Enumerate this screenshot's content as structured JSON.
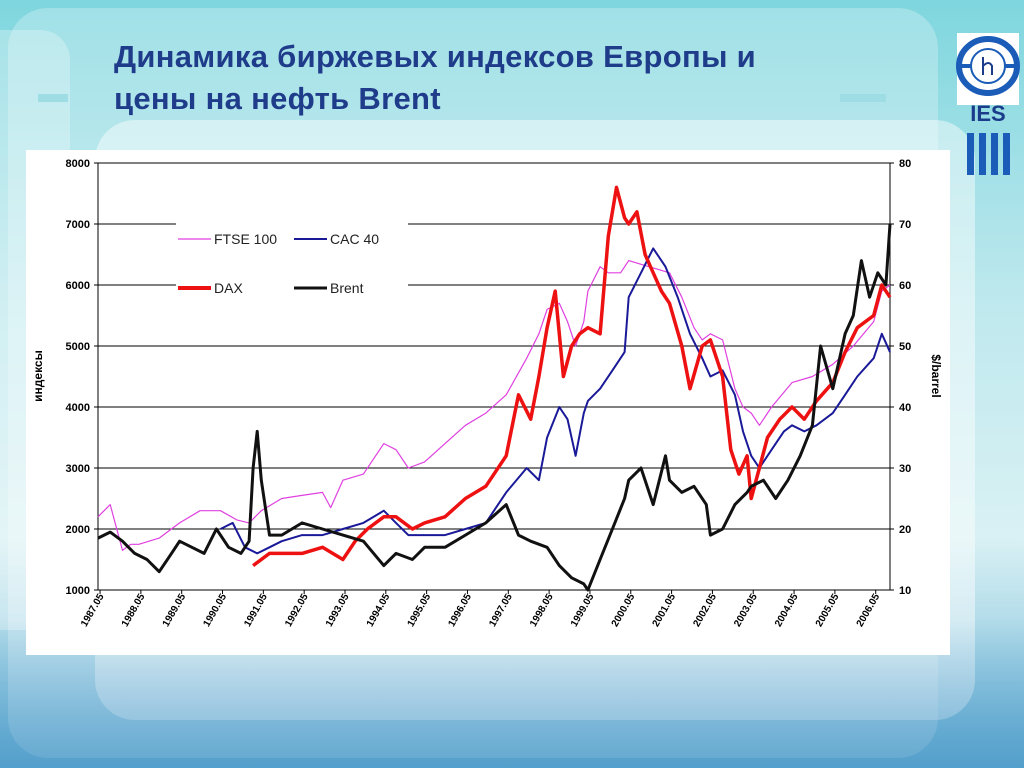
{
  "slide": {
    "title_line1": "Динамика биржевых индексов Европы и",
    "title_line2": "цены на нефть Brent",
    "logo_text": "IES"
  },
  "chart_data": {
    "type": "line",
    "xlabel": "",
    "ylabel_left": "индексы",
    "ylabel_right": "$/barrel",
    "ylim_left": [
      1000,
      8000
    ],
    "ylim_right": [
      10,
      80
    ],
    "yticks_left": [
      "1000",
      "2000",
      "3000",
      "4000",
      "5000",
      "6000",
      "7000",
      "8000"
    ],
    "yticks_right": [
      "10",
      "20",
      "30",
      "40",
      "50",
      "60",
      "70",
      "80"
    ],
    "xticks": [
      "1987.05",
      "1988.05",
      "1989.05",
      "1990.05",
      "1991.05",
      "1992.05",
      "1993.05",
      "1994.05",
      "1995.05",
      "1996.05",
      "1997.05",
      "1998.05",
      "1999.05",
      "2000.05",
      "2001.05",
      "2002.05",
      "2003.05",
      "2004.05",
      "2005.05",
      "2006.05"
    ],
    "grid": "horizontal",
    "legend_position": "top-left",
    "series": [
      {
        "name": "FTSE 100",
        "axis": "left",
        "color": "#e040e0",
        "x": [
          1987.0,
          1987.3,
          1987.6,
          1987.8,
          1988.0,
          1988.5,
          1989.0,
          1989.5,
          1990.0,
          1990.4,
          1990.7,
          1991.0,
          1991.5,
          1992.0,
          1992.5,
          1992.7,
          1993.0,
          1993.5,
          1994.0,
          1994.3,
          1994.6,
          1995.0,
          1995.5,
          1996.0,
          1996.5,
          1997.0,
          1997.5,
          1997.8,
          1998.0,
          1998.3,
          1998.5,
          1998.7,
          1998.9,
          1999.0,
          1999.3,
          1999.5,
          1999.8,
          2000.0,
          2000.5,
          2001.0,
          2001.3,
          2001.6,
          2001.8,
          2002.0,
          2002.3,
          2002.6,
          2002.8,
          2003.0,
          2003.2,
          2003.5,
          2004.0,
          2004.5,
          2005.0,
          2005.5,
          2006.0,
          2006.2,
          2006.4
        ],
        "y": [
          2200,
          2400,
          1650,
          1750,
          1750,
          1850,
          2100,
          2300,
          2300,
          2150,
          2100,
          2300,
          2500,
          2550,
          2600,
          2350,
          2800,
          2900,
          3400,
          3300,
          3000,
          3100,
          3400,
          3700,
          3900,
          4200,
          4800,
          5200,
          5600,
          5700,
          5400,
          5000,
          5400,
          5900,
          6300,
          6200,
          6200,
          6400,
          6300,
          6200,
          5800,
          5300,
          5100,
          5200,
          5100,
          4300,
          4000,
          3900,
          3700,
          4000,
          4400,
          4500,
          4700,
          5000,
          5400,
          5900,
          6000
        ]
      },
      {
        "name": "CAC 40",
        "axis": "left",
        "color": "#1a1a99",
        "x": [
          1990.0,
          1990.3,
          1990.6,
          1990.9,
          1991.2,
          1991.5,
          1992.0,
          1992.5,
          1993.0,
          1993.5,
          1994.0,
          1994.3,
          1994.6,
          1995.0,
          1995.5,
          1996.0,
          1996.5,
          1997.0,
          1997.5,
          1997.8,
          1998.0,
          1998.3,
          1998.5,
          1998.7,
          1998.9,
          1999.0,
          1999.3,
          1999.6,
          1999.9,
          2000.0,
          2000.3,
          2000.6,
          2000.9,
          2001.2,
          2001.5,
          2001.8,
          2002.0,
          2002.3,
          2002.6,
          2002.8,
          2003.0,
          2003.2,
          2003.5,
          2003.8,
          2004.0,
          2004.3,
          2004.6,
          2005.0,
          2005.3,
          2005.6,
          2006.0,
          2006.2,
          2006.4
        ],
        "y": [
          2000,
          2100,
          1700,
          1600,
          1700,
          1800,
          1900,
          1900,
          2000,
          2100,
          2300,
          2100,
          1900,
          1900,
          1900,
          2000,
          2100,
          2600,
          3000,
          2800,
          3500,
          4000,
          3800,
          3200,
          3900,
          4100,
          4300,
          4600,
          4900,
          5800,
          6200,
          6600,
          6300,
          5800,
          5200,
          4800,
          4500,
          4600,
          4200,
          3600,
          3200,
          3000,
          3300,
          3600,
          3700,
          3600,
          3700,
          3900,
          4200,
          4500,
          4800,
          5200,
          4900
        ]
      },
      {
        "name": "DAX",
        "axis": "left",
        "color": "#ee1111",
        "x": [
          1990.8,
          1991.2,
          1991.6,
          1992.0,
          1992.5,
          1993.0,
          1993.3,
          1993.6,
          1994.0,
          1994.3,
          1994.7,
          1995.0,
          1995.5,
          1996.0,
          1996.5,
          1997.0,
          1997.3,
          1997.6,
          1997.8,
          1998.0,
          1998.2,
          1998.4,
          1998.6,
          1998.8,
          1999.0,
          1999.3,
          1999.5,
          1999.7,
          1999.9,
          2000.0,
          2000.2,
          2000.4,
          2000.6,
          2000.8,
          2001.0,
          2001.3,
          2001.5,
          2001.8,
          2002.0,
          2002.3,
          2002.5,
          2002.7,
          2002.9,
          2003.0,
          2003.2,
          2003.4,
          2003.7,
          2004.0,
          2004.3,
          2004.6,
          2005.0,
          2005.3,
          2005.6,
          2006.0,
          2006.2,
          2006.4
        ],
        "y": [
          1400,
          1600,
          1600,
          1600,
          1700,
          1500,
          1800,
          2000,
          2200,
          2200,
          2000,
          2100,
          2200,
          2500,
          2700,
          3200,
          4200,
          3800,
          4500,
          5300,
          5900,
          4500,
          5000,
          5200,
          5300,
          5200,
          6800,
          7600,
          7100,
          7000,
          7200,
          6500,
          6200,
          5900,
          5700,
          5000,
          4300,
          5000,
          5100,
          4500,
          3300,
          2900,
          3200,
          2500,
          3000,
          3500,
          3800,
          4000,
          3800,
          4100,
          4400,
          4900,
          5300,
          5500,
          6000,
          5800
        ]
      },
      {
        "name": "Brent",
        "axis": "right",
        "color": "#111111",
        "x": [
          1987.0,
          1987.3,
          1987.6,
          1987.9,
          1988.2,
          1988.5,
          1988.8,
          1989.0,
          1989.3,
          1989.6,
          1989.9,
          1990.2,
          1990.5,
          1990.7,
          1990.8,
          1990.9,
          1991.0,
          1991.2,
          1991.5,
          1992.0,
          1992.5,
          1993.0,
          1993.5,
          1994.0,
          1994.3,
          1994.7,
          1995.0,
          1995.5,
          1996.0,
          1996.5,
          1997.0,
          1997.3,
          1997.6,
          1998.0,
          1998.3,
          1998.6,
          1998.9,
          1999.0,
          1999.3,
          1999.6,
          1999.9,
          2000.0,
          2000.3,
          2000.6,
          2000.9,
          2001.0,
          2001.3,
          2001.6,
          2001.9,
          2002.0,
          2002.3,
          2002.6,
          2002.9,
          2003.0,
          2003.3,
          2003.6,
          2003.9,
          2004.2,
          2004.5,
          2004.7,
          2005.0,
          2005.3,
          2005.5,
          2005.7,
          2005.9,
          2006.1,
          2006.3,
          2006.4
        ],
        "y": [
          18.5,
          19.5,
          18,
          16,
          15,
          13,
          16,
          18,
          17,
          16,
          20,
          17,
          16,
          18,
          30,
          36,
          28,
          19,
          19,
          21,
          20,
          19,
          18,
          14,
          16,
          15,
          17,
          17,
          19,
          21,
          24,
          19,
          18,
          17,
          14,
          12,
          11,
          10,
          15,
          20,
          25,
          28,
          30,
          24,
          32,
          28,
          26,
          27,
          24,
          19,
          20,
          24,
          26,
          27,
          28,
          25,
          28,
          32,
          37,
          50,
          43,
          52,
          55,
          64,
          58,
          62,
          60,
          70
        ]
      }
    ]
  }
}
